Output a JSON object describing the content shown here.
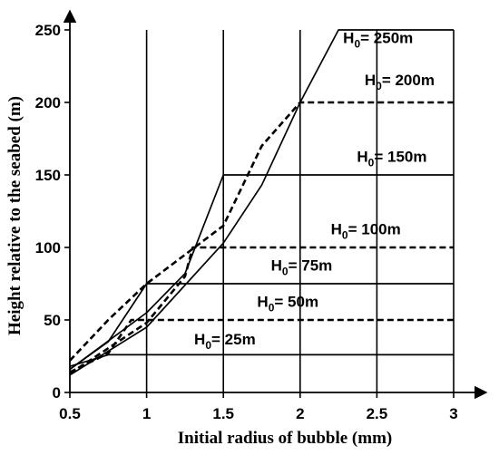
{
  "chart_data": {
    "type": "line",
    "title": "",
    "xlabel": "Initial radius of bubble (mm)",
    "ylabel": "Height relative to the seabed (m)",
    "xlim": [
      0.5,
      3
    ],
    "ylim": [
      0,
      250
    ],
    "xticks": [
      "0.5",
      "1",
      "1.5",
      "2",
      "2.5",
      "3"
    ],
    "yticks": [
      "0",
      "50",
      "100",
      "150",
      "200",
      "250"
    ],
    "grid": "vertical",
    "series": [
      {
        "name": "H0 = 25m",
        "style": "solid",
        "points": [
          [
            0.5,
            18
          ],
          [
            0.75,
            26
          ],
          [
            3,
            26
          ]
        ]
      },
      {
        "name": "H0 = 50m",
        "style": "dashed",
        "points": [
          [
            0.5,
            14
          ],
          [
            0.75,
            27
          ],
          [
            0.9,
            50
          ],
          [
            3,
            50
          ]
        ]
      },
      {
        "name": "H0 = 75m",
        "style": "solid",
        "points": [
          [
            0.5,
            16
          ],
          [
            0.75,
            35
          ],
          [
            1.0,
            75
          ],
          [
            3,
            75
          ]
        ]
      },
      {
        "name": "H0 = 100m",
        "style": "dashed",
        "points": [
          [
            0.5,
            13
          ],
          [
            1.0,
            48
          ],
          [
            1.25,
            80
          ],
          [
            1.3,
            100
          ],
          [
            3,
            100
          ]
        ]
      },
      {
        "name": "H0 = 150m",
        "style": "solid",
        "points": [
          [
            0.5,
            16
          ],
          [
            1.0,
            55
          ],
          [
            1.25,
            82
          ],
          [
            1.5,
            150
          ],
          [
            3,
            150
          ]
        ]
      },
      {
        "name": "H0 = 200m",
        "style": "dashed",
        "points": [
          [
            0.5,
            22
          ],
          [
            0.75,
            50
          ],
          [
            1.0,
            75
          ],
          [
            1.5,
            115
          ],
          [
            1.75,
            170
          ],
          [
            2.0,
            200
          ],
          [
            3,
            200
          ]
        ]
      },
      {
        "name": "H0 = 250m",
        "style": "solid",
        "points": [
          [
            0.5,
            12
          ],
          [
            1.0,
            45
          ],
          [
            1.5,
            103
          ],
          [
            1.75,
            143
          ],
          [
            2.0,
            200
          ],
          [
            2.25,
            250
          ],
          [
            3,
            250
          ]
        ]
      }
    ],
    "annotations": [
      {
        "series": "H0 = 250m",
        "main": "H",
        "sub": "0",
        "rest": "= 250m",
        "x": 2.28,
        "y": 241
      },
      {
        "series": "H0 = 200m",
        "main": "H",
        "sub": "0",
        "rest": "= 200m",
        "x": 2.42,
        "y": 212
      },
      {
        "series": "H0 = 150m",
        "main": "H",
        "sub": "0",
        "rest": "= 150m",
        "x": 2.37,
        "y": 159
      },
      {
        "series": "H0 = 100m",
        "main": "H",
        "sub": "0",
        "rest": "= 100m",
        "x": 2.2,
        "y": 109
      },
      {
        "series": "H0 = 75m",
        "main": "H",
        "sub": "0",
        "rest": "= 75m",
        "x": 1.81,
        "y": 84
      },
      {
        "series": "H0 = 50m",
        "main": "H",
        "sub": "0",
        "rest": "= 50m",
        "x": 1.72,
        "y": 59
      },
      {
        "series": "H0 = 25m",
        "main": "H",
        "sub": "0",
        "rest": "= 25m",
        "x": 1.31,
        "y": 33
      }
    ]
  }
}
